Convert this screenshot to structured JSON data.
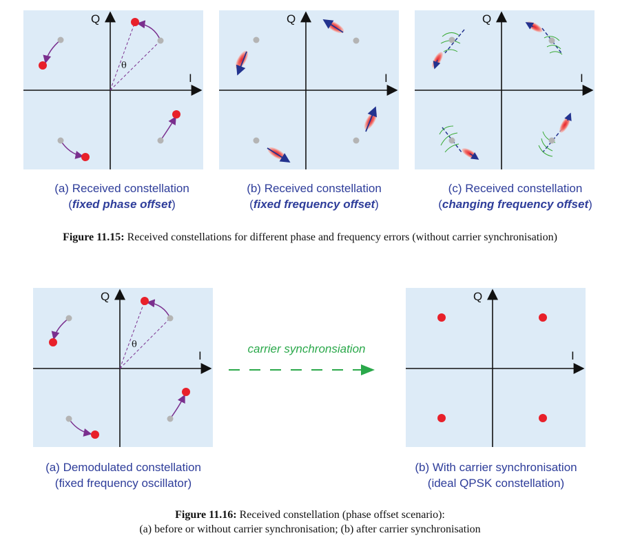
{
  "fig15": {
    "panels": [
      {
        "title": "(a) Received constellation",
        "subtitle": "fixed phase offset"
      },
      {
        "title": "(b) Received constellation",
        "subtitle": "fixed frequency offset"
      },
      {
        "title": "(c) Received constellation",
        "subtitle": "changing frequency offset"
      }
    ],
    "caption_label": "Figure 11.15:",
    "caption_text": "Received constellations for different phase and frequency errors (without carrier synchronisation)"
  },
  "fig16": {
    "panels": [
      {
        "title": "(a) Demodulated constellation",
        "subtitle": "(fixed frequency oscillator)"
      },
      {
        "title": "(b) With carrier synchronisation",
        "subtitle": "(ideal QPSK constellation)"
      }
    ],
    "arrow_label": "carrier synchronsiation",
    "caption_label": "Figure 11.16:",
    "caption_line1": "Received constellation (phase offset scenario):",
    "caption_line2": "(a) before or without carrier synchronisation; (b) after carrier synchronisation"
  },
  "axes": {
    "i_label": "I",
    "q_label": "Q",
    "theta_label": "θ"
  },
  "colors": {
    "panel_bg": "#ddebf7",
    "received_point": "#e8202a",
    "ideal_point": "#b4b4b4",
    "phase_arrow": "#7a2f8e",
    "freq_arrow": "#23338f",
    "jitter_arc": "#3aaa35",
    "sync_arrow": "#2aa84a",
    "caption_text": "#2e3d9a"
  }
}
